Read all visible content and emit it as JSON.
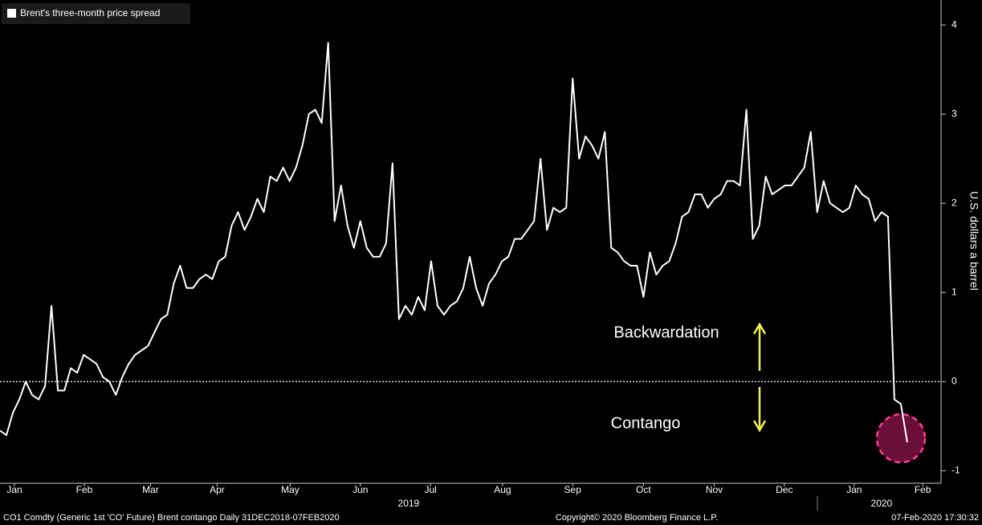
{
  "chart_data": {
    "type": "line",
    "legend_label": "Brent's three-month price spread",
    "y_axis_label": "U.S. dollars a barrel",
    "annotations": [
      "Backwardation",
      "Contango"
    ],
    "footer_left": "CO1 Comdty (Generic 1st 'CO' Future) Brent contango  Daily 31DEC2018-07FEB2020",
    "footer_center": "Copyright© 2020 Bloomberg Finance L.P.",
    "footer_right": "07-Feb-2020 17:30:32",
    "color": "#ffffff",
    "reference_line": 0,
    "values": [
      -0.55,
      -0.6,
      -0.35,
      -0.2,
      0,
      -0.15,
      -0.2,
      -0.05,
      0.85,
      -0.1,
      -0.1,
      0.15,
      0.1,
      0.3,
      0.25,
      0.2,
      0.05,
      0,
      -0.15,
      0.05,
      0.2,
      0.3,
      0.35,
      0.4,
      0.55,
      0.7,
      0.75,
      1.1,
      1.3,
      1.05,
      1.05,
      1.15,
      1.2,
      1.15,
      1.35,
      1.4,
      1.75,
      1.9,
      1.7,
      1.85,
      2.05,
      1.9,
      2.3,
      2.25,
      2.4,
      2.25,
      2.4,
      2.65,
      3,
      3.05,
      2.9,
      3.8,
      1.8,
      2.2,
      1.75,
      1.5,
      1.8,
      1.5,
      1.4,
      1.4,
      1.55,
      2.45,
      0.7,
      0.85,
      0.75,
      0.95,
      0.8,
      1.35,
      0.85,
      0.75,
      0.85,
      0.9,
      1.05,
      1.4,
      1.05,
      0.85,
      1.1,
      1.2,
      1.35,
      1.4,
      1.6,
      1.6,
      1.7,
      1.8,
      2.5,
      1.7,
      1.95,
      1.9,
      1.95,
      3.4,
      2.5,
      2.75,
      2.65,
      2.5,
      2.8,
      1.5,
      1.45,
      1.35,
      1.3,
      1.3,
      0.95,
      1.45,
      1.2,
      1.3,
      1.35,
      1.55,
      1.85,
      1.9,
      2.1,
      2.1,
      1.95,
      2.05,
      2.1,
      2.25,
      2.25,
      2.2,
      3.05,
      1.6,
      1.75,
      2.3,
      2.1,
      2.15,
      2.2,
      2.2,
      2.3,
      2.4,
      2.8,
      1.9,
      2.25,
      2,
      1.95,
      1.9,
      1.95,
      2.2,
      2.1,
      2.05,
      1.8,
      1.9,
      1.85,
      -0.2,
      -0.25,
      -0.68
    ],
    "xlim": [
      0,
      146
    ],
    "xticks": [
      {
        "value": 2.25,
        "label": "Jan"
      },
      {
        "value": 13.1,
        "label": "Feb"
      },
      {
        "value": 23.4,
        "label": "Mar"
      },
      {
        "value": 33.75,
        "label": "Apr"
      },
      {
        "value": 45.1,
        "label": "May"
      },
      {
        "value": 56,
        "label": "Jun"
      },
      {
        "value": 66.9,
        "label": "Jul"
      },
      {
        "value": 78.1,
        "label": "Aug"
      },
      {
        "value": 89,
        "label": "Sep"
      },
      {
        "value": 100,
        "label": "Oct"
      },
      {
        "value": 111,
        "label": "Nov"
      },
      {
        "value": 121.9,
        "label": "Dec"
      },
      {
        "value": 132.75,
        "label": "Jan"
      },
      {
        "value": 143.4,
        "label": "Feb"
      }
    ],
    "x_group_labels": [
      {
        "value": 63.5,
        "label": "2019"
      },
      {
        "value": 137,
        "label": "2020"
      }
    ],
    "ylim": [
      -1.14,
      4.28
    ],
    "yticks": [
      -1,
      0,
      1,
      2,
      3,
      4
    ]
  }
}
